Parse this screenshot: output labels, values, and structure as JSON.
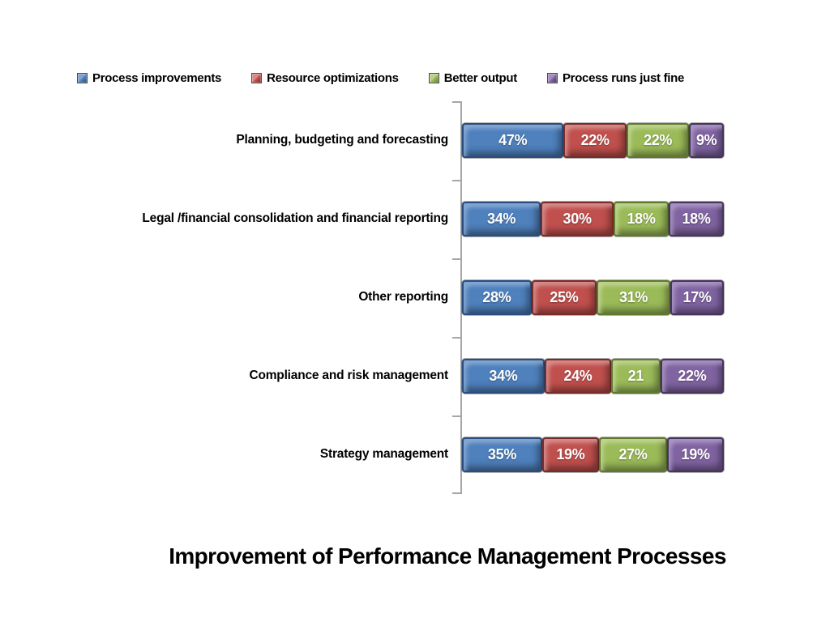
{
  "chart_data": {
    "type": "bar",
    "orientation": "horizontal-stacked",
    "title": "Improvement of Performance Management Processes",
    "legend_position": "top",
    "grid": false,
    "axis_color": "#A6A6A6",
    "xlabel": "",
    "ylabel": "",
    "categories": [
      "Planning, budgeting and forecasting",
      "Legal /financial consolidation and financial reporting",
      "Other reporting",
      "Compliance and risk management",
      "Strategy management"
    ],
    "series": [
      {
        "name": "Process improvements",
        "color": "#4F81BD",
        "light": "#7EA4D2",
        "dark": "#2A4E7E",
        "values": [
          47,
          34,
          28,
          34,
          35
        ]
      },
      {
        "name": "Resource optimizations",
        "color": "#C0504D",
        "light": "#D58A88",
        "dark": "#7B2B29",
        "values": [
          22,
          30,
          25,
          24,
          19
        ]
      },
      {
        "name": "Better output",
        "color": "#9BBB59",
        "light": "#BCD28A",
        "dark": "#5F7A2B",
        "values": [
          22,
          18,
          31,
          21,
          27
        ]
      },
      {
        "name": "Process runs just fine",
        "color": "#8064A2",
        "light": "#A48FC0",
        "dark": "#46345F",
        "values": [
          9,
          18,
          17,
          22,
          19
        ]
      }
    ],
    "segment_labels": [
      [
        "47%",
        "22%",
        "22%",
        "9%"
      ],
      [
        "34%",
        "30%",
        "18%",
        "18%"
      ],
      [
        "28%",
        "25%",
        "31%",
        "17%"
      ],
      [
        "34%",
        "24%",
        "21",
        "22%"
      ],
      [
        "35%",
        "19%",
        "27%",
        "19%"
      ]
    ]
  }
}
